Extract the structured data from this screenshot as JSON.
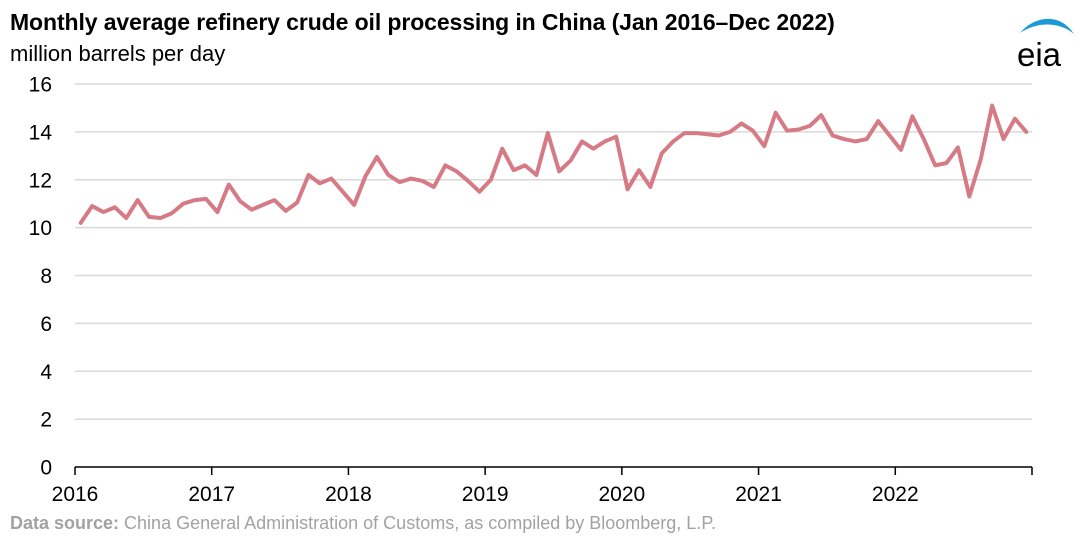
{
  "title": "Monthly average refinery crude oil processing in China (Jan 2016–Dec 2022)",
  "subtitle": "million barrels per day",
  "logo_text": "eia",
  "source": {
    "label": "Data source:",
    "text": " China General Administration of Customs, as compiled by Bloomberg, L.P."
  },
  "colors": {
    "series": "#d67b86",
    "grid": "#d9d9d9",
    "axis": "#000000",
    "logo_swoosh": "#1b9ad6",
    "source_text": "#a2a2a2"
  },
  "chart_data": {
    "type": "line",
    "title": "Monthly average refinery crude oil processing in China (Jan 2016–Dec 2022)",
    "ylabel": "million barrels per day",
    "xlabel": "",
    "ylim": [
      0,
      16
    ],
    "yticks": [
      0,
      2,
      4,
      6,
      8,
      10,
      12,
      14,
      16
    ],
    "xticks": [
      "2016",
      "2017",
      "2018",
      "2019",
      "2020",
      "2021",
      "2022"
    ],
    "x_start": "2016-01",
    "x_end": "2022-12",
    "grid": true,
    "series": [
      {
        "name": "",
        "values": [
          10.2,
          10.9,
          10.65,
          10.85,
          10.4,
          11.15,
          10.45,
          10.4,
          10.6,
          11.0,
          11.15,
          11.2,
          10.65,
          11.8,
          11.1,
          10.75,
          10.95,
          11.15,
          10.7,
          11.05,
          12.2,
          11.85,
          12.05,
          11.5,
          10.95,
          12.15,
          12.95,
          12.2,
          11.9,
          12.05,
          11.95,
          11.7,
          12.6,
          12.35,
          11.95,
          11.5,
          12.0,
          13.3,
          12.4,
          12.6,
          12.2,
          13.95,
          12.35,
          12.8,
          13.6,
          13.3,
          13.6,
          13.8,
          11.6,
          12.4,
          11.7,
          13.1,
          13.6,
          13.95,
          13.95,
          13.9,
          13.85,
          14.0,
          14.35,
          14.05,
          13.4,
          14.8,
          14.05,
          14.1,
          14.25,
          14.7,
          13.85,
          13.7,
          13.6,
          13.7,
          14.45,
          13.85,
          13.25,
          14.65,
          13.7,
          12.6,
          12.7,
          13.35,
          11.3,
          12.85,
          15.1,
          13.7,
          14.55,
          14.0
        ]
      }
    ]
  }
}
